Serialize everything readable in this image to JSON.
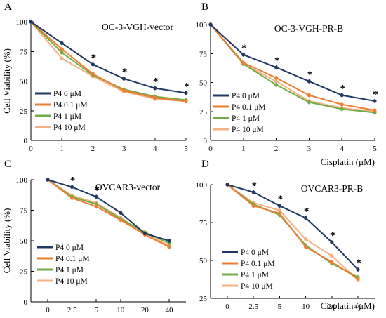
{
  "colors": {
    "P4 0 μM": "#1f3864",
    "P4 0.1 μM": "#ed7d31",
    "P4 1 μM": "#70ad47",
    "P4 10 μM": "#f4b183"
  },
  "chart_data": [
    {
      "type": "line",
      "panel": "A",
      "title": "OC-3-VGH-vector",
      "ylabel": "Cell Viability (%)",
      "xlabel": "",
      "x_scale": "linear",
      "x": [
        0,
        1,
        2,
        3,
        4,
        5
      ],
      "x_ticks": [
        "0",
        "1",
        "2",
        "3",
        "4",
        "5"
      ],
      "xlim": [
        0,
        5
      ],
      "ylim": [
        0,
        100
      ],
      "y_ticks": [
        "0",
        "25",
        "50",
        "75",
        "100"
      ],
      "legend_position": "bottom-left",
      "grid": false,
      "series": [
        {
          "name": "P4 0 μM",
          "values": [
            100,
            82,
            64,
            52,
            44,
            40
          ]
        },
        {
          "name": "P4 0.1 μM",
          "values": [
            100,
            77,
            56,
            42,
            36,
            33
          ]
        },
        {
          "name": "P4 1 μM",
          "values": [
            100,
            74,
            55,
            43,
            37,
            34
          ]
        },
        {
          "name": "P4 10 μM",
          "values": [
            100,
            69,
            54,
            41,
            35,
            33
          ]
        }
      ],
      "significance": [
        {
          "x": 2,
          "label": "*"
        },
        {
          "x": 3,
          "label": "*"
        },
        {
          "x": 4,
          "label": "*"
        },
        {
          "x": 5,
          "label": "*"
        }
      ]
    },
    {
      "type": "line",
      "panel": "B",
      "title": "OC-3-VGH-PR-B",
      "ylabel": "",
      "xlabel": "Cisplatin (μM)",
      "x_scale": "linear",
      "x": [
        0,
        1,
        2,
        3,
        4,
        5
      ],
      "x_ticks": [
        "0",
        "1",
        "2",
        "3",
        "4",
        "5"
      ],
      "xlim": [
        0,
        5
      ],
      "ylim": [
        0,
        100
      ],
      "y_ticks": [
        "0",
        "25",
        "50",
        "75",
        "100"
      ],
      "legend_position": "bottom-left",
      "grid": false,
      "series": [
        {
          "name": "P4 0 μM",
          "values": [
            100,
            74,
            63,
            51,
            39,
            34
          ]
        },
        {
          "name": "P4 0.1 μM",
          "values": [
            100,
            67,
            54,
            39,
            31,
            26
          ]
        },
        {
          "name": "P4 1 μM",
          "values": [
            100,
            66,
            48,
            33,
            27,
            24
          ]
        },
        {
          "name": "P4 10 μM",
          "values": [
            100,
            66,
            51,
            34,
            28,
            25
          ]
        }
      ],
      "significance": [
        {
          "x": 1,
          "label": "*"
        },
        {
          "x": 2,
          "label": "*"
        },
        {
          "x": 3,
          "label": "*"
        },
        {
          "x": 4,
          "label": "*"
        },
        {
          "x": 5,
          "label": "*"
        }
      ]
    },
    {
      "type": "line",
      "panel": "C",
      "title": "OVCAR3-vector",
      "ylabel": "Cell Viability (%)",
      "xlabel": "",
      "x_scale": "categorical",
      "x": [
        0,
        2.5,
        5,
        10,
        20,
        40
      ],
      "x_ticks": [
        "0",
        "2.5",
        "5",
        "10",
        "20",
        "40"
      ],
      "ylim": [
        0,
        100
      ],
      "y_ticks": [
        "0",
        "25",
        "50",
        "75",
        "100"
      ],
      "legend_position": "bottom-left",
      "grid": false,
      "series": [
        {
          "name": "P4 0 μM",
          "values": [
            100,
            94,
            86,
            73,
            56,
            50
          ]
        },
        {
          "name": "P4 0.1 μM",
          "values": [
            100,
            85,
            78,
            67,
            55,
            45
          ]
        },
        {
          "name": "P4 1 μM",
          "values": [
            100,
            86,
            80,
            68,
            57,
            48
          ]
        },
        {
          "name": "P4 10 μM",
          "values": [
            100,
            87,
            81,
            69,
            56,
            46
          ]
        }
      ],
      "significance": [
        {
          "x": 2.5,
          "label": "*"
        },
        {
          "x": 5,
          "label": "*"
        }
      ]
    },
    {
      "type": "line",
      "panel": "D",
      "title": "OVCAR3-PR-B",
      "ylabel": "",
      "xlabel": "Cisplatin (μM)",
      "x_scale": "categorical",
      "x": [
        0,
        2.5,
        5,
        10,
        20,
        40
      ],
      "x_ticks": [
        "0",
        "2.5",
        "5",
        "10",
        "20",
        "40"
      ],
      "ylim": [
        25,
        100
      ],
      "y_ticks": [
        "25",
        "50",
        "75",
        "100"
      ],
      "legend_position": "bottom-left",
      "grid": false,
      "series": [
        {
          "name": "P4 0 μM",
          "values": [
            100,
            95,
            86,
            78,
            62,
            44
          ]
        },
        {
          "name": "P4 0.1 μM",
          "values": [
            100,
            86,
            81,
            59,
            49,
            38
          ]
        },
        {
          "name": "P4 1 μM",
          "values": [
            100,
            87,
            80,
            60,
            48,
            39
          ]
        },
        {
          "name": "P4 10 μM",
          "values": [
            100,
            88,
            83,
            64,
            53,
            37
          ]
        }
      ],
      "significance": [
        {
          "x": 2.5,
          "label": "*"
        },
        {
          "x": 5,
          "label": "*"
        },
        {
          "x": 10,
          "label": "*"
        },
        {
          "x": 20,
          "label": "*"
        },
        {
          "x": 40,
          "label": "*"
        }
      ]
    }
  ]
}
